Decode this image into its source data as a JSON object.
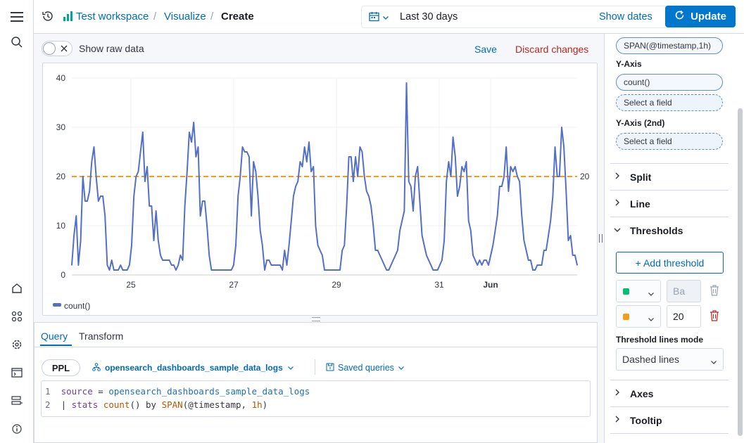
{
  "header": {
    "breadcrumbs": [
      "Test workspace",
      "Visualize",
      "Create"
    ],
    "date_range": "Last 30 days",
    "show_dates": "Show dates",
    "update": "Update"
  },
  "toolbar": {
    "toggle_label": "Show raw data",
    "save": "Save",
    "discard": "Discard changes"
  },
  "chart_data": {
    "type": "line",
    "series": [
      {
        "name": "count()",
        "color": "#5470c6",
        "values": [
          2,
          8,
          12,
          2,
          7,
          20,
          15,
          15,
          17,
          23,
          26,
          20,
          15,
          16,
          16,
          12,
          2,
          1,
          3,
          1,
          1,
          1,
          2,
          1,
          1,
          1,
          2,
          6,
          16,
          20,
          21,
          25,
          29,
          19,
          22,
          14,
          14,
          7,
          13,
          7,
          4,
          3,
          3,
          3,
          3,
          2,
          2,
          1,
          2,
          4,
          3,
          14,
          21,
          29,
          27,
          31,
          24,
          26,
          12,
          15,
          15,
          10,
          4,
          1,
          1,
          1,
          1,
          1,
          1,
          1,
          1,
          1,
          1,
          2,
          6,
          16,
          20,
          26,
          25,
          25,
          24,
          12,
          23,
          21,
          16,
          9,
          6,
          1,
          3,
          3,
          2,
          2,
          2,
          2,
          2,
          1,
          5,
          2,
          6,
          11,
          16,
          18,
          19,
          23,
          22,
          26,
          23,
          27,
          21,
          22,
          10,
          6,
          5,
          4,
          1,
          1,
          1,
          1,
          1,
          1,
          1,
          1,
          5,
          6,
          14,
          24,
          24,
          19,
          24,
          20,
          26,
          25,
          20,
          17,
          16,
          14,
          10,
          5,
          5,
          4,
          3,
          2,
          1,
          1,
          2,
          3,
          4,
          5,
          9,
          11,
          13,
          39,
          19,
          18,
          13,
          20,
          22,
          15,
          8,
          6,
          4,
          3,
          2,
          1,
          1,
          1,
          2,
          3,
          7,
          19,
          23,
          20,
          28,
          24,
          16,
          18,
          22,
          21,
          23,
          11,
          9,
          4,
          3,
          2,
          3,
          2,
          3,
          3,
          2,
          4,
          6,
          9,
          12,
          18,
          18,
          20,
          26,
          17,
          22,
          21,
          22,
          20,
          19,
          12,
          7,
          5,
          3,
          3,
          1,
          1,
          2,
          2,
          2,
          5,
          5,
          8,
          11,
          16,
          26,
          20,
          20,
          30,
          26,
          17,
          7,
          8,
          4,
          4,
          2
        ]
      }
    ],
    "threshold": 20,
    "threshold_label": "20",
    "threshold_color": "#f29e1a",
    "x_ticks": [
      "25",
      "27",
      "29",
      "31",
      "Jun"
    ],
    "y_ticks": [
      "40",
      "30",
      "20",
      "10",
      "0"
    ],
    "ylim": [
      0,
      40
    ],
    "legend": "count()"
  },
  "query": {
    "tabs": [
      "Query",
      "Transform"
    ],
    "language": "PPL",
    "index": "opensearch_dashboards_sample_data_logs",
    "saved_queries": "Saved queries",
    "lines": [
      {
        "num": "1",
        "parts": [
          [
            "kw",
            "source"
          ],
          [
            "op",
            " = "
          ],
          [
            "str",
            "opensearch_dashboards_sample_data_logs"
          ]
        ]
      },
      {
        "num": "2",
        "parts": [
          [
            "op",
            "| "
          ],
          [
            "kw",
            "stats"
          ],
          [
            "plain",
            " "
          ],
          [
            "fn",
            "count"
          ],
          [
            "plain",
            "() "
          ],
          [
            "plain",
            "by "
          ],
          [
            "fn",
            "SPAN"
          ],
          [
            "plain",
            "(@timestamp, "
          ],
          [
            "num",
            "1h"
          ],
          [
            "plain",
            ")"
          ]
        ]
      }
    ]
  },
  "panel": {
    "x_field": "SPAN(@timestamp,1h)",
    "y_axis_label": "Y-Axis",
    "y_field": "count()",
    "select_placeholder": "Select a field",
    "y2_axis_label": "Y-Axis (2nd)",
    "sections": [
      "Split",
      "Line",
      "Thresholds"
    ],
    "add_threshold": "+ Add threshold",
    "thresholds": [
      {
        "color": "#00bf6f",
        "value": "Ba"
      },
      {
        "color": "#f29e1a",
        "value": "20"
      }
    ],
    "lines_mode_label": "Threshold lines mode",
    "lines_mode_value": "Dashed lines",
    "bottom_sections": [
      "Axes",
      "Tooltip"
    ]
  }
}
